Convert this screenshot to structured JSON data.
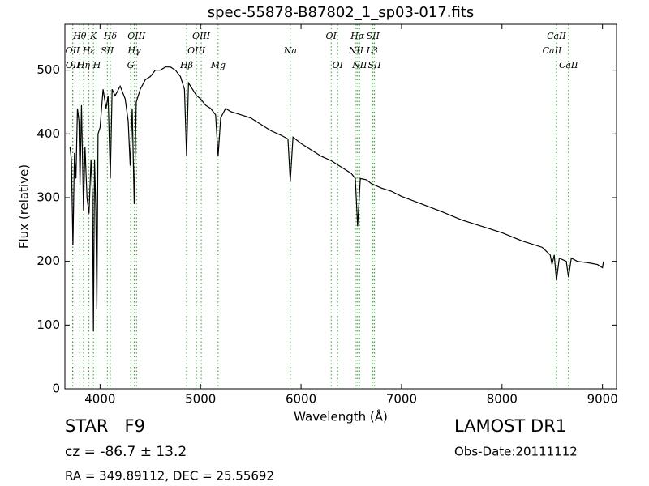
{
  "chart_data": {
    "type": "line",
    "title": "spec-55878-B87802_1_sp03-017.fits",
    "x_label": "Wavelength (Å)",
    "y_label": "Flux (relative)",
    "x": [
      3700,
      3715,
      3730,
      3745,
      3760,
      3775,
      3790,
      3800,
      3815,
      3835,
      3850,
      3870,
      3890,
      3910,
      3925,
      3934,
      3945,
      3958,
      3968,
      3980,
      4000,
      4030,
      4060,
      4080,
      4102,
      4120,
      4150,
      4200,
      4250,
      4280,
      4300,
      4320,
      4340,
      4360,
      4400,
      4450,
      4500,
      4550,
      4600,
      4650,
      4700,
      4750,
      4800,
      4840,
      4861,
      4880,
      4920,
      4960,
      5000,
      5050,
      5100,
      5150,
      5175,
      5200,
      5250,
      5300,
      5400,
      5500,
      5600,
      5700,
      5800,
      5870,
      5893,
      5920,
      6000,
      6100,
      6200,
      6300,
      6400,
      6500,
      6540,
      6563,
      6590,
      6650,
      6700,
      6800,
      6900,
      7000,
      7200,
      7400,
      7600,
      7800,
      8000,
      8200,
      8400,
      8480,
      8498,
      8520,
      8542,
      8570,
      8640,
      8662,
      8690,
      8750,
      8850,
      8950,
      9000,
      9010
    ],
    "values": [
      380,
      360,
      225,
      370,
      330,
      440,
      420,
      320,
      445,
      280,
      380,
      300,
      275,
      360,
      300,
      90,
      360,
      280,
      125,
      400,
      410,
      470,
      440,
      460,
      330,
      470,
      460,
      475,
      455,
      420,
      350,
      440,
      290,
      450,
      470,
      485,
      490,
      500,
      500,
      505,
      505,
      500,
      490,
      470,
      365,
      480,
      470,
      460,
      455,
      445,
      440,
      430,
      365,
      425,
      440,
      435,
      430,
      425,
      415,
      405,
      398,
      392,
      325,
      395,
      385,
      375,
      365,
      358,
      348,
      338,
      330,
      255,
      330,
      328,
      322,
      315,
      310,
      302,
      290,
      278,
      265,
      255,
      245,
      232,
      222,
      210,
      195,
      210,
      170,
      205,
      200,
      175,
      205,
      200,
      198,
      195,
      190,
      200
    ],
    "color": "#000000",
    "line_color": "#2ca02c",
    "xlim": [
      3650,
      9140
    ],
    "ylim": [
      0,
      572
    ],
    "xticks": [
      4000,
      5000,
      6000,
      7000,
      8000,
      9000
    ],
    "yticks": [
      0,
      100,
      200,
      300,
      400,
      500
    ],
    "line_labels": [
      [
        {
          "label": "Hθ",
          "wavelength": 3798
        },
        {
          "label": "K",
          "wavelength": 3934
        },
        {
          "label": "Hδ",
          "wavelength": 4102
        },
        {
          "label": "OIII",
          "wavelength": 4363
        },
        {
          "label": "OIII",
          "wavelength": 5007
        },
        {
          "label": "OI",
          "wavelength": 6300
        },
        {
          "label": "Hα",
          "wavelength": 6563
        },
        {
          "label": "SII",
          "wavelength": 6716
        },
        {
          "label": "CaII",
          "wavelength": 8542
        }
      ],
      [
        {
          "label": "OII",
          "wavelength": 3727
        },
        {
          "label": "Hε",
          "wavelength": 3889
        },
        {
          "label": "SII",
          "wavelength": 4072
        },
        {
          "label": "Hγ",
          "wavelength": 4340
        },
        {
          "label": "OIII",
          "wavelength": 4959
        },
        {
          "label": "Na",
          "wavelength": 5893
        },
        {
          "label": "NII",
          "wavelength": 6548
        },
        {
          "label": "L3",
          "wavelength": 6708
        },
        {
          "label": "CaII",
          "wavelength": 8498
        }
      ],
      [
        {
          "label": "OII",
          "wavelength": 3729
        },
        {
          "label": "Hη",
          "wavelength": 3835
        },
        {
          "label": "H",
          "wavelength": 3968
        },
        {
          "label": "G",
          "wavelength": 4304
        },
        {
          "label": "Hβ",
          "wavelength": 4861
        },
        {
          "label": "Mg",
          "wavelength": 5175
        },
        {
          "label": "OI",
          "wavelength": 6364
        },
        {
          "label": "NII",
          "wavelength": 6583
        },
        {
          "label": "SII",
          "wavelength": 6731
        },
        {
          "label": "CaII",
          "wavelength": 8662
        }
      ]
    ],
    "info": {
      "class": "STAR   F9",
      "cz": "cz = -86.7 ± 13.2",
      "coords": "RA = 349.89112, DEC = 25.55692",
      "survey": "LAMOST DR1",
      "date": "Obs-Date:20111112"
    }
  }
}
